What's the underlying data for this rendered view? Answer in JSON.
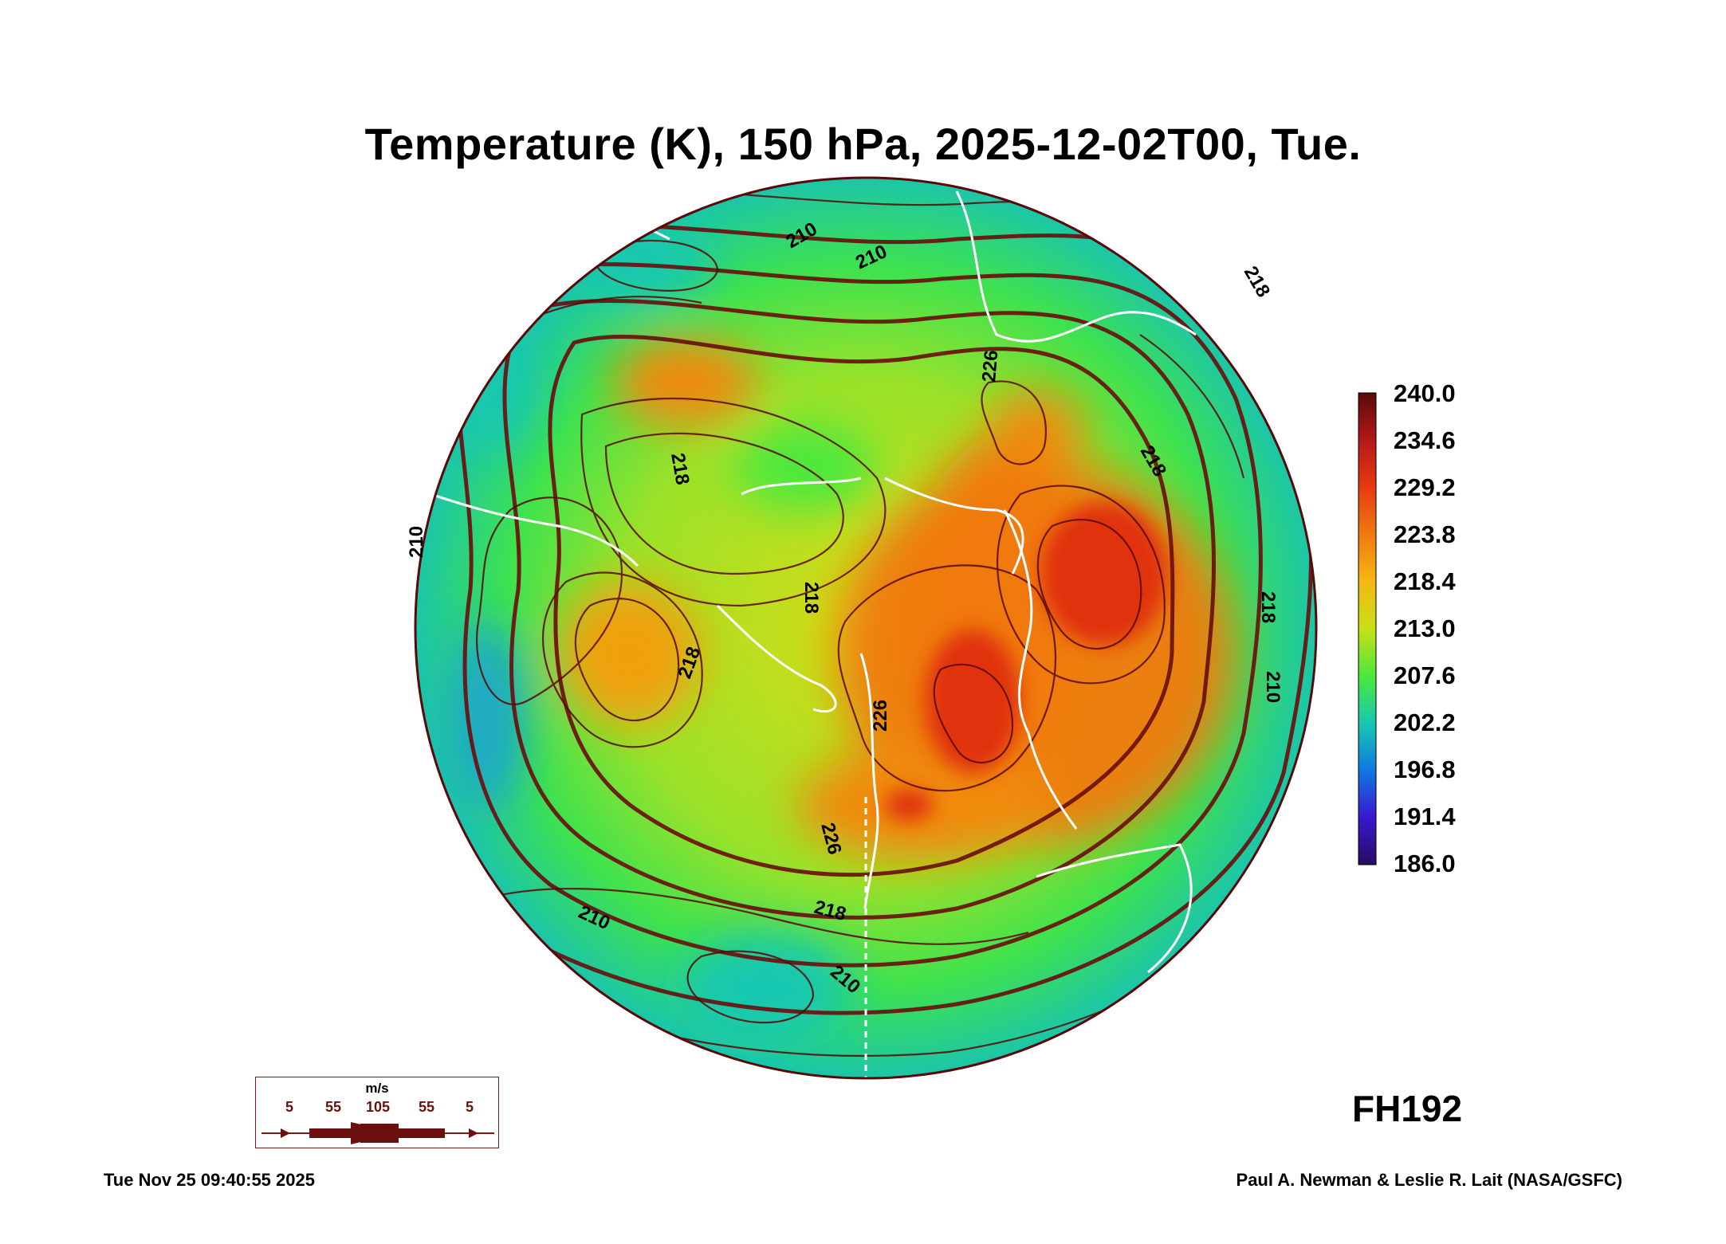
{
  "title": "Temperature (K), 150 hPa, 2025-12-02T00, Tue.",
  "colorbar": {
    "labels": [
      "240.0",
      "234.6",
      "229.2",
      "223.8",
      "218.4",
      "213.0",
      "207.6",
      "202.2",
      "196.8",
      "191.4",
      "186.0"
    ],
    "colors": [
      "#5a0a0a",
      "#b41818",
      "#e83a12",
      "#f07a10",
      "#f5b810",
      "#c8e016",
      "#4ce83c",
      "#18c8b0",
      "#1078e0",
      "#3818d0",
      "#2a0a60"
    ]
  },
  "contour_labels": [
    "210",
    "210",
    "218",
    "218",
    "226",
    "218",
    "218",
    "226",
    "226",
    "218",
    "218",
    "210",
    "210",
    "210",
    "218",
    "210"
  ],
  "wind_legend": {
    "unit": "m/s",
    "ticks": [
      "5",
      "55",
      "105",
      "55",
      "5"
    ]
  },
  "forecast_hour": "FH192",
  "footer": {
    "timestamp": "Tue Nov 25 09:40:55 2025",
    "credit": "Paul A. Newman & Leslie R. Lait (NASA/GSFC)"
  }
}
